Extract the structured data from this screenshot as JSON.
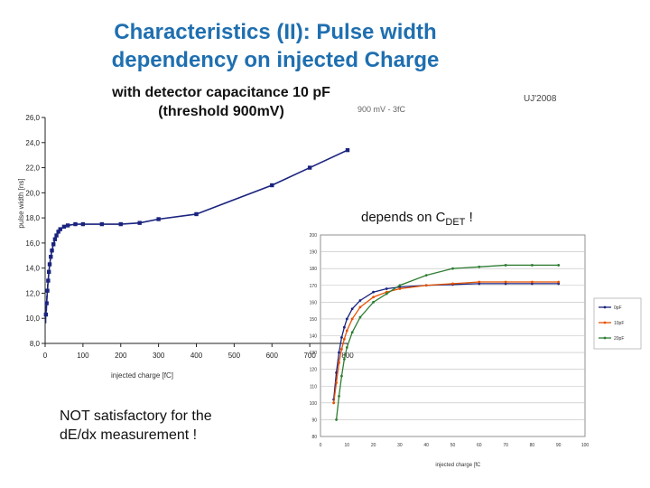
{
  "slide": {
    "title_line1": "Characteristics (II): Pulse width",
    "title_line2": "dependency on injected Charge",
    "subtitle_line1": "with detector capacitance 10 pF",
    "subtitle_line2": "(threshold 900mV)",
    "ref": "UJ'2008",
    "snippet": "900 mV  -  3fC",
    "depends_prefix": "depends on C",
    "depends_sub": "DET",
    "depends_suffix": " !",
    "note_line1": "NOT satisfactory for the",
    "note_line2": "dE/dx measurement !"
  },
  "chart_data": [
    {
      "type": "line",
      "xlabel": "injected charge [fC]",
      "ylabel": "pulse width [ns]",
      "xlim": [
        0,
        800
      ],
      "ylim": [
        8,
        26
      ],
      "x_ticks": [
        "0",
        "100",
        "200",
        "300",
        "400",
        "500",
        "600",
        "700",
        "800"
      ],
      "y_ticks": [
        "8,0",
        "10,0",
        "12,0",
        "14,0",
        "16,0",
        "18,0",
        "20,0",
        "22,0",
        "24,0",
        "26,0"
      ],
      "color": "#1a237e",
      "series": [
        {
          "name": "10pF",
          "x": [
            2,
            4,
            6,
            8,
            10,
            12,
            15,
            18,
            22,
            26,
            30,
            35,
            40,
            50,
            60,
            80,
            100,
            150,
            200,
            250,
            300,
            400,
            600,
            700,
            800
          ],
          "y": [
            10.3,
            11.2,
            12.2,
            13.0,
            13.7,
            14.3,
            14.9,
            15.4,
            15.9,
            16.3,
            16.6,
            16.9,
            17.1,
            17.3,
            17.4,
            17.5,
            17.5,
            17.5,
            17.5,
            17.6,
            17.9,
            18.3,
            20.6,
            22.0,
            23.4
          ]
        }
      ]
    },
    {
      "type": "line",
      "xlabel": "injected charge [fC",
      "xlim": [
        0,
        100
      ],
      "ylim": [
        80,
        200
      ],
      "x_ticks": [
        "0",
        "10",
        "20",
        "30",
        "40",
        "50",
        "60",
        "70",
        "80",
        "90",
        "100"
      ],
      "y_ticks": [
        "80",
        "90",
        "100",
        "110",
        "120",
        "130",
        "140",
        "150",
        "160",
        "170",
        "180",
        "190",
        "200"
      ],
      "legend": "right",
      "series": [
        {
          "name": "0pF",
          "color": "#1a237e",
          "x": [
            5,
            6,
            7,
            8,
            9,
            10,
            12,
            15,
            20,
            25,
            30,
            40,
            50,
            60,
            70,
            80,
            90
          ],
          "y": [
            102,
            118,
            130,
            139,
            145,
            150,
            156,
            161,
            166,
            168,
            169,
            170,
            170.5,
            171,
            171,
            171,
            171
          ]
        },
        {
          "name": "10pF",
          "color": "#e65100",
          "x": [
            5,
            6,
            7,
            8,
            9,
            10,
            12,
            15,
            20,
            25,
            30,
            40,
            50,
            60,
            70,
            80,
            90
          ],
          "y": [
            100,
            112,
            124,
            132,
            138,
            143,
            150,
            157,
            163,
            166,
            168,
            170,
            171,
            172,
            172,
            172,
            172
          ]
        },
        {
          "name": "20pF",
          "color": "#2e7d32",
          "x": [
            6,
            7,
            8,
            9,
            10,
            12,
            15,
            20,
            25,
            30,
            40,
            50,
            60,
            70,
            80,
            90
          ],
          "y": [
            90,
            104,
            116,
            126,
            133,
            142,
            151,
            160,
            165,
            170,
            176,
            180,
            181,
            182,
            182,
            182
          ]
        }
      ]
    }
  ]
}
